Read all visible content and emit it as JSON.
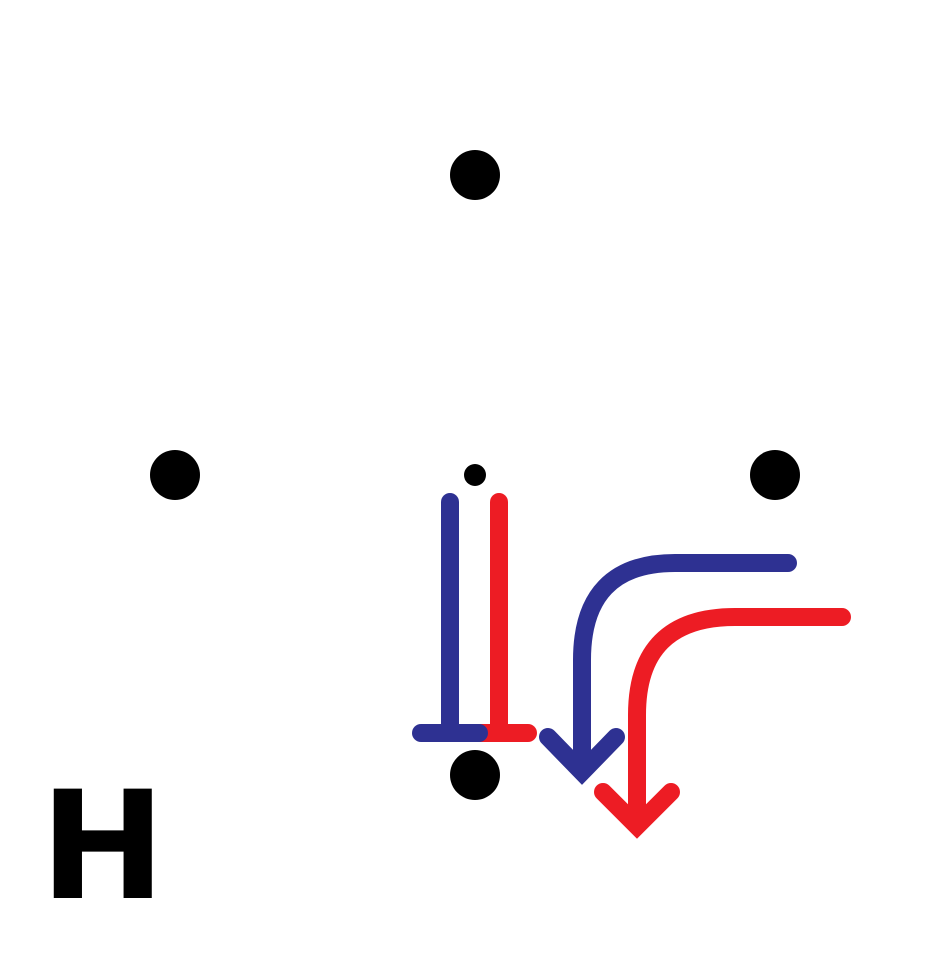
{
  "panel_label": "H",
  "colors": {
    "background": "#ffffff",
    "dot": "#000000",
    "blue": "#2e3192",
    "red": "#ed1c24"
  },
  "elements": {
    "dots": [
      "top-dot",
      "left-dot",
      "right-dot",
      "bottom-dot",
      "center-small-dot"
    ],
    "symbols": [
      {
        "name": "blue-t-bar",
        "color": "blue",
        "kind": "inhibition"
      },
      {
        "name": "red-t-bar",
        "color": "red",
        "kind": "inhibition"
      },
      {
        "name": "blue-curved-arrow",
        "color": "blue",
        "kind": "arrow"
      },
      {
        "name": "red-curved-arrow",
        "color": "red",
        "kind": "arrow"
      }
    ]
  }
}
